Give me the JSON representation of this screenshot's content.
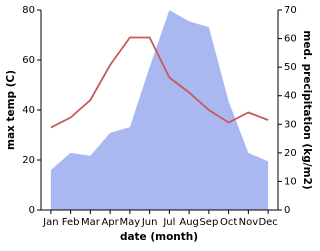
{
  "chart_data": {
    "type": "line-area",
    "x_label": "date (month)",
    "y_label": "max temp (C)",
    "y2_label": "med. precipitation (kg/m2)",
    "categories": [
      "Jan",
      "Feb",
      "Mar",
      "Apr",
      "May",
      "Jun",
      "Jul",
      "Aug",
      "Sep",
      "Oct",
      "Nov",
      "Dec"
    ],
    "series": [
      {
        "name": "max temp",
        "color": "#c75a5a",
        "kind": "line",
        "values": [
          33,
          37,
          44,
          58,
          69,
          69,
          53,
          47,
          40,
          35,
          39,
          36
        ]
      },
      {
        "name": "precipitation",
        "color": "#aab8f2",
        "kind": "area",
        "axis": "y2",
        "values": [
          14,
          20,
          19,
          27,
          29,
          50,
          70,
          66,
          64,
          38,
          20,
          17
        ]
      }
    ],
    "ylim": [
      0,
      80
    ],
    "yticks": [
      0,
      20,
      40,
      60,
      80
    ],
    "y2lim": [
      0,
      70
    ],
    "y2ticks": [
      0,
      10,
      20,
      30,
      40,
      50,
      60,
      70
    ]
  }
}
